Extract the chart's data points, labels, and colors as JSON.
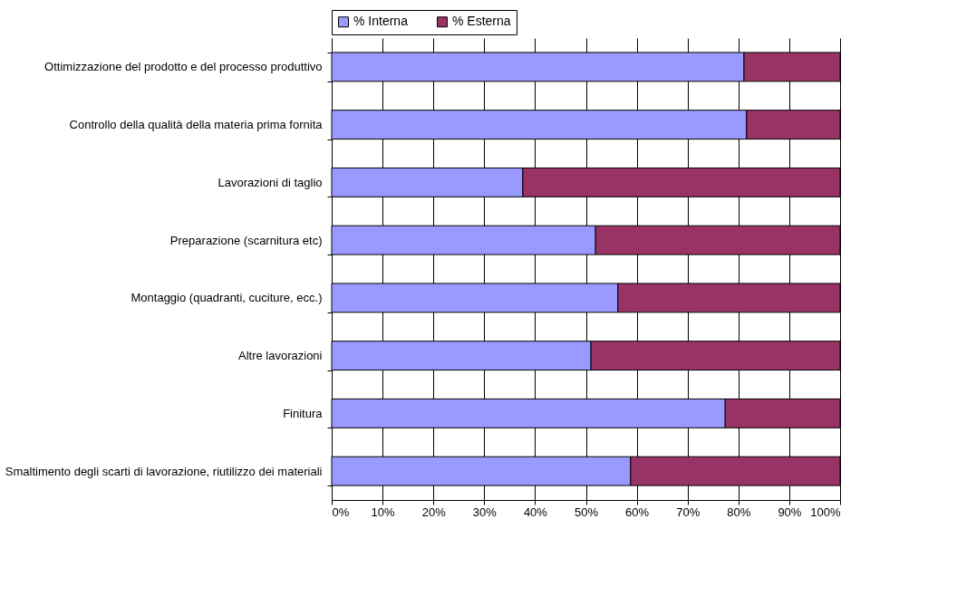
{
  "chart_data": {
    "type": "bar",
    "orientation": "horizontal",
    "stacked": true,
    "categories": [
      "Ottimizzazione del prodotto e del processo produttivo",
      "Controllo della qualità della materia prima fornita",
      "Lavorazioni di taglio",
      "Preparazione (scarnitura etc)",
      "Montaggio (quadranti, cuciture, ecc.)",
      "Altre lavorazioni",
      "Finitura",
      "Smaltimento degli scarti di lavorazione, riutilizzo dei materiali"
    ],
    "series": [
      {
        "name": "% Interna",
        "color": "#9999ff",
        "values": [
          81.1,
          81.6,
          37.6,
          51.9,
          56.3,
          51.0,
          77.4,
          58.8
        ]
      },
      {
        "name": "% Esterna",
        "color": "#993366",
        "values": [
          18.9,
          18.4,
          62.4,
          48.1,
          43.7,
          49.0,
          22.6,
          41.2
        ]
      }
    ],
    "xlim": [
      0,
      100
    ],
    "xticks": [
      {
        "value": 0,
        "label": "0%"
      },
      {
        "value": 10,
        "label": "10%"
      },
      {
        "value": 20,
        "label": "20%"
      },
      {
        "value": 30,
        "label": "30%"
      },
      {
        "value": 40,
        "label": "40%"
      },
      {
        "value": 50,
        "label": "50%"
      },
      {
        "value": 60,
        "label": "60%"
      },
      {
        "value": 70,
        "label": "70%"
      },
      {
        "value": 80,
        "label": "80%"
      },
      {
        "value": 90,
        "label": "90%"
      },
      {
        "value": 100,
        "label": "100%"
      }
    ],
    "grid": "x",
    "legend": "top"
  }
}
